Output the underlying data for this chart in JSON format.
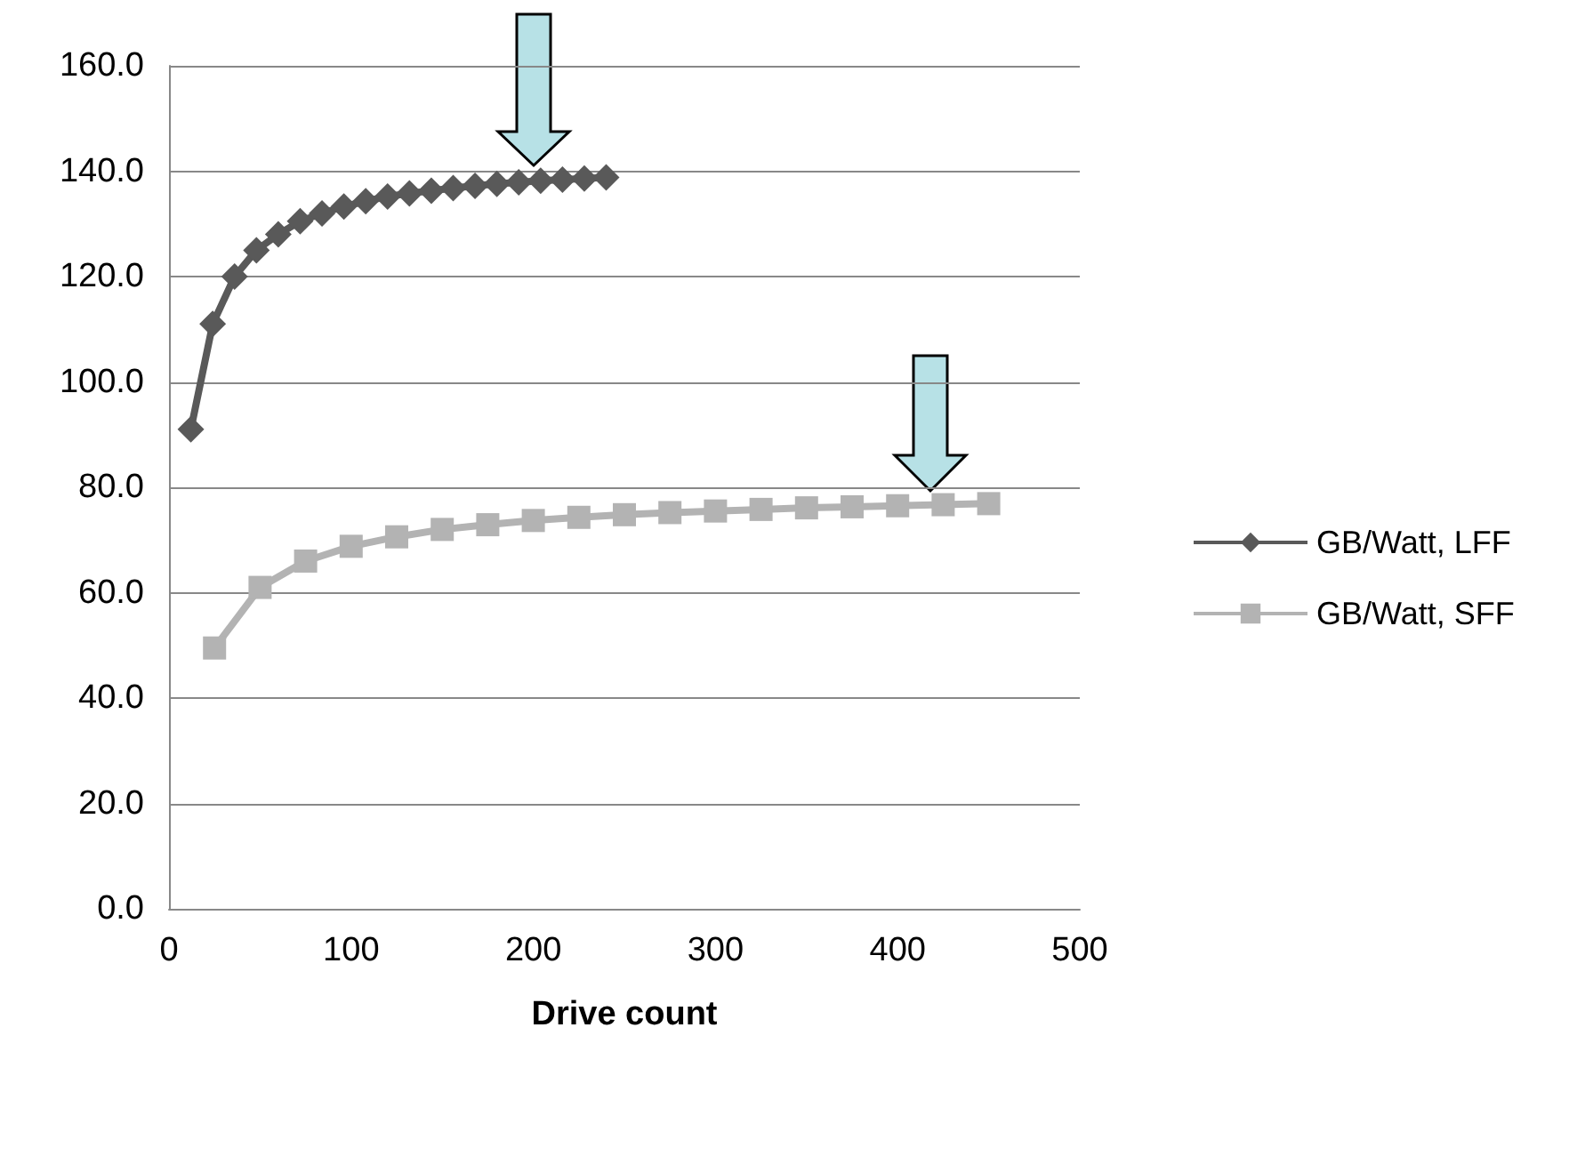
{
  "chart_data": {
    "type": "line",
    "xlabel": "Drive count",
    "xlim": [
      0,
      500
    ],
    "xticks": [
      0,
      100,
      200,
      300,
      400,
      500
    ],
    "ylim": [
      0,
      160
    ],
    "yticks": [
      {
        "value": 0,
        "label": "0.0"
      },
      {
        "value": 20,
        "label": "20.0"
      },
      {
        "value": 40,
        "label": "40.0"
      },
      {
        "value": 60,
        "label": "60.0"
      },
      {
        "value": 80,
        "label": "80.0"
      },
      {
        "value": 100,
        "label": "100.0"
      },
      {
        "value": 120,
        "label": "120.0"
      },
      {
        "value": 140,
        "label": "140.0"
      },
      {
        "value": 160,
        "label": "160.0"
      }
    ],
    "grid": "y",
    "legend": "right",
    "series": [
      {
        "name": "GB/Watt, LFF",
        "color": "#595959",
        "marker": "diamond",
        "x": [
          12,
          24,
          36,
          48,
          60,
          72,
          84,
          96,
          108,
          120,
          132,
          144,
          156,
          168,
          180,
          192,
          204,
          216,
          228,
          240
        ],
        "values": [
          91,
          111,
          120,
          125,
          128,
          130.5,
          132,
          133.3,
          134.3,
          135.2,
          135.8,
          136.3,
          136.8,
          137.2,
          137.6,
          137.9,
          138.2,
          138.4,
          138.6,
          138.8
        ]
      },
      {
        "name": "GB/Watt, SFF",
        "color": "#b3b3b3",
        "marker": "square",
        "x": [
          25,
          50,
          75,
          100,
          125,
          150,
          175,
          200,
          225,
          250,
          275,
          300,
          325,
          350,
          375,
          400,
          425,
          450
        ],
        "values": [
          49.5,
          61,
          66,
          68.8,
          70.6,
          72,
          72.9,
          73.7,
          74.3,
          74.8,
          75.2,
          75.5,
          75.8,
          76.1,
          76.3,
          76.5,
          76.7,
          76.9
        ]
      }
    ]
  }
}
